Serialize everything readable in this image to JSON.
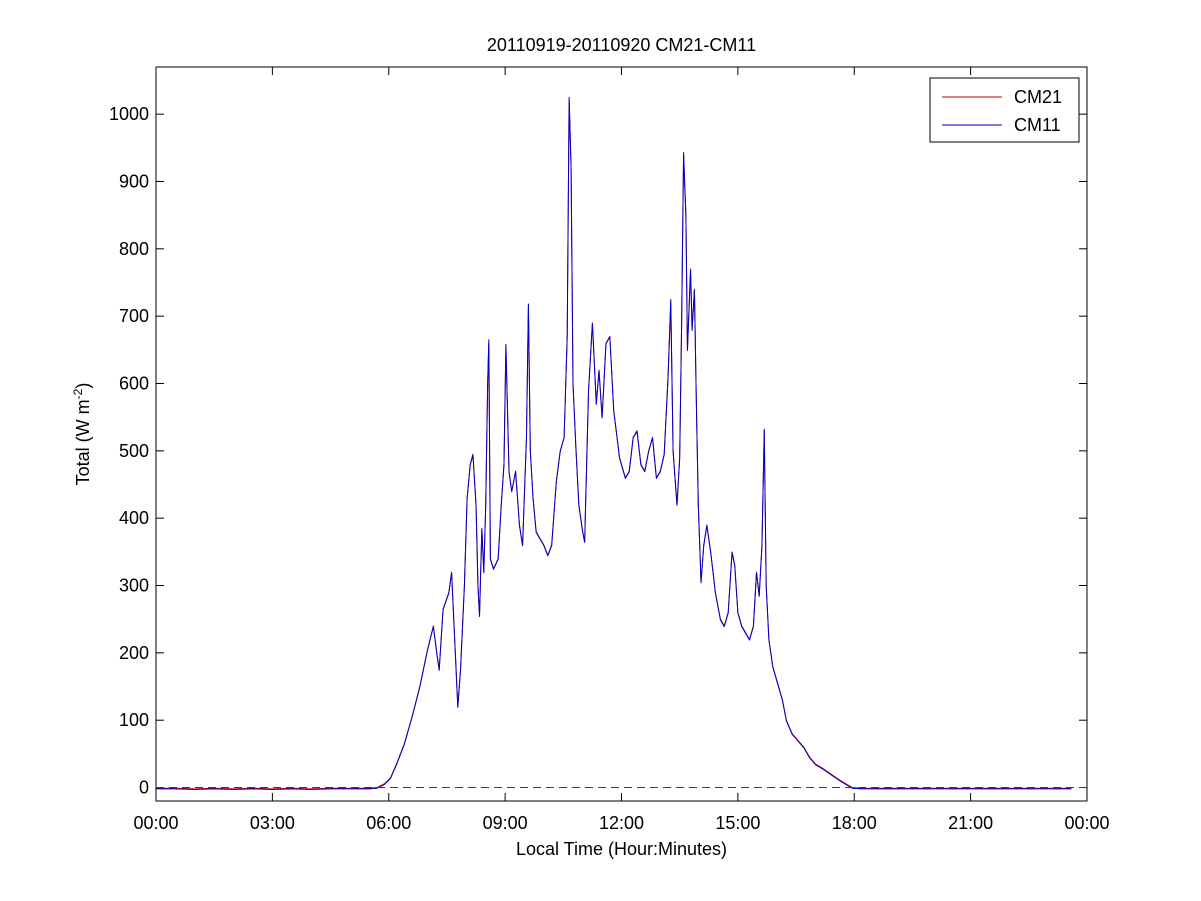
{
  "chart_data": {
    "type": "line",
    "title": "20110919-20110920 CM21-CM11",
    "xlabel": "Local Time (Hour:Minutes)",
    "ylabel": {
      "base": "Total (W m",
      "sup": "-2",
      "close": ")"
    },
    "xlim": [
      0,
      24
    ],
    "ylim": [
      -20,
      1070
    ],
    "x_ticks": [
      0,
      3,
      6,
      9,
      12,
      15,
      18,
      21,
      24
    ],
    "x_tick_labels": [
      "00:00",
      "03:00",
      "06:00",
      "09:00",
      "12:00",
      "15:00",
      "18:00",
      "21:00",
      "00:00"
    ],
    "y_ticks": [
      0,
      100,
      200,
      300,
      400,
      500,
      600,
      700,
      800,
      900,
      1000
    ],
    "y_tick_labels": [
      "0",
      "100",
      "200",
      "300",
      "400",
      "500",
      "600",
      "700",
      "800",
      "900",
      "1000"
    ],
    "grid": false,
    "legend_position": "top-right",
    "zero_reference_line": {
      "y": 0,
      "style": "dashed",
      "color": "#cc0000"
    },
    "series": [
      {
        "name": "CM21",
        "color": "#cc0000",
        "points": [
          [
            0,
            -1
          ],
          [
            0.5,
            -1
          ],
          [
            1,
            -2
          ],
          [
            1.5,
            -1
          ],
          [
            2,
            -2
          ],
          [
            2.5,
            -1
          ],
          [
            3,
            -2
          ],
          [
            3.5,
            -1
          ],
          [
            4,
            -2
          ],
          [
            4.5,
            -1
          ],
          [
            5,
            -1
          ],
          [
            5.5,
            -1
          ],
          [
            5.7,
            0
          ],
          [
            5.9,
            6
          ],
          [
            6.05,
            15
          ],
          [
            6.2,
            35
          ],
          [
            6.4,
            65
          ],
          [
            6.6,
            105
          ],
          [
            6.8,
            150
          ],
          [
            7.0,
            205
          ],
          [
            7.15,
            240
          ],
          [
            7.25,
            195
          ],
          [
            7.3,
            175
          ],
          [
            7.4,
            265
          ],
          [
            7.55,
            290
          ],
          [
            7.62,
            320
          ],
          [
            7.7,
            220
          ],
          [
            7.78,
            120
          ],
          [
            7.85,
            175
          ],
          [
            7.95,
            300
          ],
          [
            8.02,
            430
          ],
          [
            8.1,
            480
          ],
          [
            8.17,
            495
          ],
          [
            8.25,
            420
          ],
          [
            8.3,
            300
          ],
          [
            8.34,
            255
          ],
          [
            8.4,
            385
          ],
          [
            8.45,
            320
          ],
          [
            8.5,
            420
          ],
          [
            8.55,
            600
          ],
          [
            8.58,
            660
          ],
          [
            8.62,
            340
          ],
          [
            8.7,
            325
          ],
          [
            8.82,
            340
          ],
          [
            8.9,
            420
          ],
          [
            8.97,
            480
          ],
          [
            9.02,
            655
          ],
          [
            9.1,
            470
          ],
          [
            9.17,
            440
          ],
          [
            9.27,
            470
          ],
          [
            9.37,
            390
          ],
          [
            9.45,
            360
          ],
          [
            9.55,
            520
          ],
          [
            9.6,
            715
          ],
          [
            9.65,
            500
          ],
          [
            9.72,
            430
          ],
          [
            9.8,
            380
          ],
          [
            9.9,
            370
          ],
          [
            10.0,
            360
          ],
          [
            10.1,
            345
          ],
          [
            10.2,
            360
          ],
          [
            10.32,
            455
          ],
          [
            10.42,
            500
          ],
          [
            10.52,
            520
          ],
          [
            10.6,
            670
          ],
          [
            10.65,
            1020
          ],
          [
            10.7,
            920
          ],
          [
            10.75,
            600
          ],
          [
            10.82,
            510
          ],
          [
            10.9,
            420
          ],
          [
            11.0,
            380
          ],
          [
            11.05,
            365
          ],
          [
            11.15,
            590
          ],
          [
            11.25,
            690
          ],
          [
            11.35,
            570
          ],
          [
            11.42,
            620
          ],
          [
            11.5,
            550
          ],
          [
            11.6,
            660
          ],
          [
            11.7,
            670
          ],
          [
            11.8,
            560
          ],
          [
            11.95,
            490
          ],
          [
            12.1,
            460
          ],
          [
            12.2,
            470
          ],
          [
            12.3,
            520
          ],
          [
            12.4,
            530
          ],
          [
            12.5,
            480
          ],
          [
            12.6,
            470
          ],
          [
            12.7,
            500
          ],
          [
            12.8,
            520
          ],
          [
            12.9,
            460
          ],
          [
            13.0,
            470
          ],
          [
            13.1,
            495
          ],
          [
            13.2,
            610
          ],
          [
            13.27,
            720
          ],
          [
            13.33,
            500
          ],
          [
            13.43,
            420
          ],
          [
            13.5,
            490
          ],
          [
            13.55,
            690
          ],
          [
            13.6,
            940
          ],
          [
            13.66,
            850
          ],
          [
            13.7,
            650
          ],
          [
            13.78,
            770
          ],
          [
            13.82,
            680
          ],
          [
            13.88,
            740
          ],
          [
            13.93,
            570
          ],
          [
            13.98,
            420
          ],
          [
            14.05,
            305
          ],
          [
            14.12,
            360
          ],
          [
            14.2,
            390
          ],
          [
            14.3,
            350
          ],
          [
            14.42,
            290
          ],
          [
            14.55,
            250
          ],
          [
            14.65,
            240
          ],
          [
            14.75,
            260
          ],
          [
            14.85,
            350
          ],
          [
            14.92,
            330
          ],
          [
            15.0,
            260
          ],
          [
            15.1,
            240
          ],
          [
            15.2,
            230
          ],
          [
            15.3,
            220
          ],
          [
            15.4,
            240
          ],
          [
            15.48,
            320
          ],
          [
            15.55,
            285
          ],
          [
            15.62,
            360
          ],
          [
            15.68,
            530
          ],
          [
            15.73,
            300
          ],
          [
            15.8,
            220
          ],
          [
            15.9,
            180
          ],
          [
            16.05,
            150
          ],
          [
            16.15,
            130
          ],
          [
            16.25,
            100
          ],
          [
            16.4,
            80
          ],
          [
            16.55,
            70
          ],
          [
            16.7,
            60
          ],
          [
            16.85,
            45
          ],
          [
            17.0,
            35
          ],
          [
            17.2,
            28
          ],
          [
            17.4,
            20
          ],
          [
            17.6,
            12
          ],
          [
            17.8,
            5
          ],
          [
            17.95,
            0
          ],
          [
            18.2,
            -1
          ],
          [
            19,
            -1
          ],
          [
            20,
            -1
          ],
          [
            21,
            -1
          ],
          [
            22,
            -1
          ],
          [
            23,
            -1
          ],
          [
            23.6,
            -1
          ]
        ]
      },
      {
        "name": "CM11",
        "color": "#0000cc",
        "points": [
          [
            0,
            -2
          ],
          [
            0.5,
            -2
          ],
          [
            1,
            -3
          ],
          [
            1.5,
            -2
          ],
          [
            2,
            -3
          ],
          [
            2.5,
            -2
          ],
          [
            3,
            -3
          ],
          [
            3.5,
            -2
          ],
          [
            4,
            -3
          ],
          [
            4.5,
            -2
          ],
          [
            5,
            -2
          ],
          [
            5.5,
            -2
          ],
          [
            5.7,
            -1
          ],
          [
            5.9,
            5
          ],
          [
            6.05,
            14
          ],
          [
            6.2,
            34
          ],
          [
            6.4,
            64
          ],
          [
            6.6,
            104
          ],
          [
            6.8,
            149
          ],
          [
            7.0,
            204
          ],
          [
            7.15,
            239
          ],
          [
            7.25,
            194
          ],
          [
            7.3,
            174
          ],
          [
            7.4,
            264
          ],
          [
            7.55,
            289
          ],
          [
            7.62,
            319
          ],
          [
            7.7,
            219
          ],
          [
            7.78,
            119
          ],
          [
            7.85,
            174
          ],
          [
            7.95,
            299
          ],
          [
            8.02,
            429
          ],
          [
            8.1,
            479
          ],
          [
            8.17,
            494
          ],
          [
            8.25,
            419
          ],
          [
            8.3,
            299
          ],
          [
            8.34,
            254
          ],
          [
            8.4,
            384
          ],
          [
            8.45,
            319
          ],
          [
            8.5,
            419
          ],
          [
            8.55,
            602
          ],
          [
            8.58,
            665
          ],
          [
            8.62,
            339
          ],
          [
            8.7,
            324
          ],
          [
            8.82,
            339
          ],
          [
            8.9,
            419
          ],
          [
            8.97,
            479
          ],
          [
            9.02,
            658
          ],
          [
            9.1,
            469
          ],
          [
            9.17,
            439
          ],
          [
            9.27,
            469
          ],
          [
            9.37,
            389
          ],
          [
            9.45,
            359
          ],
          [
            9.55,
            519
          ],
          [
            9.6,
            718
          ],
          [
            9.65,
            499
          ],
          [
            9.72,
            429
          ],
          [
            9.8,
            379
          ],
          [
            9.9,
            369
          ],
          [
            10.0,
            359
          ],
          [
            10.1,
            344
          ],
          [
            10.2,
            359
          ],
          [
            10.32,
            454
          ],
          [
            10.42,
            499
          ],
          [
            10.52,
            519
          ],
          [
            10.6,
            669
          ],
          [
            10.65,
            1025
          ],
          [
            10.7,
            923
          ],
          [
            10.75,
            599
          ],
          [
            10.82,
            509
          ],
          [
            10.9,
            419
          ],
          [
            11.0,
            379
          ],
          [
            11.05,
            364
          ],
          [
            11.15,
            589
          ],
          [
            11.25,
            689
          ],
          [
            11.35,
            569
          ],
          [
            11.42,
            619
          ],
          [
            11.5,
            549
          ],
          [
            11.6,
            659
          ],
          [
            11.7,
            669
          ],
          [
            11.8,
            559
          ],
          [
            11.95,
            489
          ],
          [
            12.1,
            459
          ],
          [
            12.2,
            469
          ],
          [
            12.3,
            519
          ],
          [
            12.4,
            529
          ],
          [
            12.5,
            479
          ],
          [
            12.6,
            469
          ],
          [
            12.7,
            499
          ],
          [
            12.8,
            519
          ],
          [
            12.9,
            459
          ],
          [
            13.0,
            469
          ],
          [
            13.1,
            494
          ],
          [
            13.2,
            609
          ],
          [
            13.27,
            725
          ],
          [
            13.33,
            499
          ],
          [
            13.43,
            419
          ],
          [
            13.5,
            489
          ],
          [
            13.55,
            689
          ],
          [
            13.6,
            943
          ],
          [
            13.66,
            849
          ],
          [
            13.7,
            649
          ],
          [
            13.78,
            769
          ],
          [
            13.82,
            679
          ],
          [
            13.88,
            739
          ],
          [
            13.93,
            569
          ],
          [
            13.98,
            419
          ],
          [
            14.05,
            304
          ],
          [
            14.12,
            359
          ],
          [
            14.2,
            389
          ],
          [
            14.3,
            349
          ],
          [
            14.42,
            289
          ],
          [
            14.55,
            249
          ],
          [
            14.65,
            239
          ],
          [
            14.75,
            259
          ],
          [
            14.85,
            349
          ],
          [
            14.92,
            329
          ],
          [
            15.0,
            259
          ],
          [
            15.1,
            239
          ],
          [
            15.2,
            229
          ],
          [
            15.3,
            219
          ],
          [
            15.4,
            239
          ],
          [
            15.48,
            319
          ],
          [
            15.55,
            284
          ],
          [
            15.62,
            359
          ],
          [
            15.68,
            532
          ],
          [
            15.73,
            299
          ],
          [
            15.8,
            219
          ],
          [
            15.9,
            179
          ],
          [
            16.05,
            149
          ],
          [
            16.15,
            129
          ],
          [
            16.25,
            99
          ],
          [
            16.4,
            79
          ],
          [
            16.55,
            69
          ],
          [
            16.7,
            59
          ],
          [
            16.85,
            44
          ],
          [
            17.0,
            34
          ],
          [
            17.2,
            27
          ],
          [
            17.4,
            19
          ],
          [
            17.6,
            11
          ],
          [
            17.8,
            4
          ],
          [
            17.95,
            -1
          ],
          [
            18.2,
            -2
          ],
          [
            19,
            -2
          ],
          [
            20,
            -2
          ],
          [
            21,
            -2
          ],
          [
            22,
            -2
          ],
          [
            23,
            -2
          ],
          [
            23.6,
            -2
          ]
        ]
      }
    ]
  }
}
